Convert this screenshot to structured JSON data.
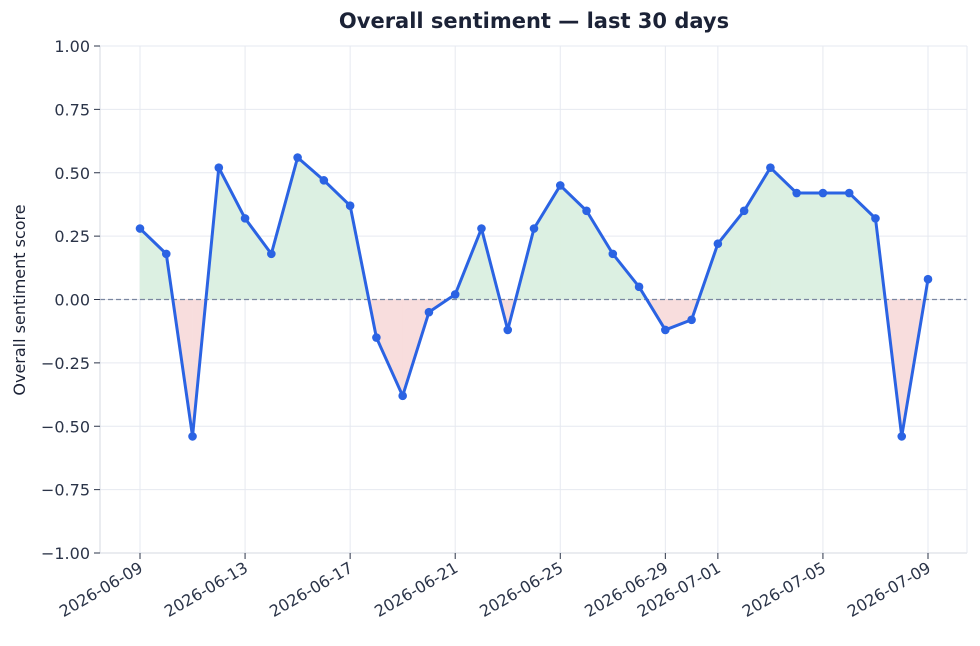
{
  "chart_data": {
    "type": "line",
    "title": "Overall sentiment — last 30 days",
    "xlabel": "",
    "ylabel": "Overall sentiment score",
    "ylim": [
      -1.0,
      1.0
    ],
    "yticks": [
      "1.00",
      "0.75",
      "0.50",
      "0.25",
      "0.00",
      "−0.25",
      "−0.50",
      "−0.75",
      "−1.00"
    ],
    "ytick_values": [
      1.0,
      0.75,
      0.5,
      0.25,
      0.0,
      -0.25,
      -0.5,
      -0.75,
      -1.0
    ],
    "xticks": [
      "2026-06-09",
      "2026-06-13",
      "2026-06-17",
      "2026-06-21",
      "2026-06-25",
      "2026-06-29",
      "2026-07-01",
      "2026-07-05",
      "2026-07-09"
    ],
    "grid": true,
    "zero_reference_line": true,
    "positive_fill_color": "#dcf0e2",
    "negative_fill_color": "#f8dddd",
    "line_color": "#2b63e3",
    "series": [
      {
        "x": [
          "2026-06-09",
          "2026-06-10",
          "2026-06-11",
          "2026-06-12",
          "2026-06-13",
          "2026-06-14",
          "2026-06-15",
          "2026-06-16",
          "2026-06-17",
          "2026-06-18",
          "2026-06-19",
          "2026-06-20",
          "2026-06-21",
          "2026-06-22",
          "2026-06-23",
          "2026-06-24",
          "2026-06-25",
          "2026-06-26",
          "2026-06-27",
          "2026-06-28",
          "2026-06-29",
          "2026-06-30",
          "2026-07-01",
          "2026-07-02",
          "2026-07-03",
          "2026-07-04",
          "2026-07-05",
          "2026-07-06",
          "2026-07-07",
          "2026-07-08",
          "2026-07-09"
        ],
        "values": [
          0.28,
          0.18,
          -0.54,
          0.52,
          0.32,
          0.18,
          0.56,
          0.47,
          0.37,
          -0.15,
          -0.38,
          -0.05,
          0.02,
          0.28,
          -0.12,
          0.28,
          0.45,
          0.35,
          0.18,
          0.05,
          -0.12,
          -0.08,
          0.22,
          0.35,
          0.52,
          0.42,
          0.42,
          0.42,
          0.32,
          -0.54,
          0.08
        ]
      }
    ]
  }
}
